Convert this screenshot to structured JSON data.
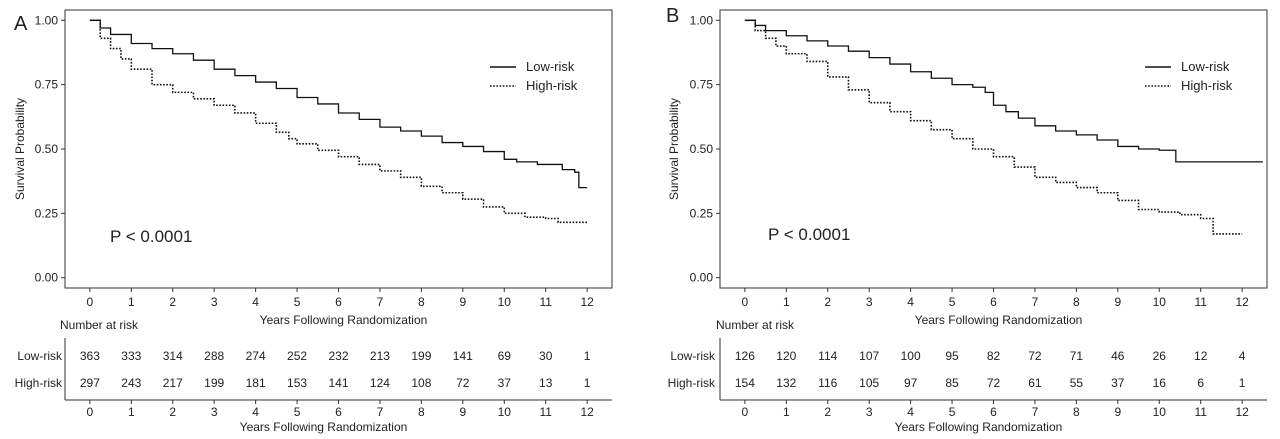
{
  "chart_data": [
    {
      "type": "line",
      "panel_label": "A",
      "ylabel": "Survival Probability",
      "xlabel": "Years Following Randomization",
      "xlim": [
        -0.6,
        12.6
      ],
      "ylim": [
        -0.04,
        1.04
      ],
      "xticks": [
        "0",
        "1",
        "2",
        "3",
        "4",
        "5",
        "6",
        "7",
        "8",
        "9",
        "10",
        "11",
        "12"
      ],
      "yticks": [
        "0.00",
        "0.25",
        "0.50",
        "0.75",
        "1.00"
      ],
      "legend_position": "top-right",
      "annotation": "P < 0.0001",
      "series": [
        {
          "name": "Low-risk",
          "style": "solid",
          "x": [
            0,
            0.25,
            0.5,
            1,
            1.5,
            2,
            2.5,
            3,
            3.5,
            4,
            4.5,
            5,
            5.5,
            6,
            6.5,
            7,
            7.5,
            8,
            8.5,
            9,
            9.5,
            10,
            10.3,
            10.8,
            11.4,
            11.7,
            11.8,
            12
          ],
          "y": [
            1.0,
            0.97,
            0.945,
            0.91,
            0.89,
            0.87,
            0.845,
            0.81,
            0.785,
            0.76,
            0.735,
            0.7,
            0.675,
            0.64,
            0.615,
            0.585,
            0.57,
            0.55,
            0.525,
            0.51,
            0.49,
            0.46,
            0.45,
            0.44,
            0.42,
            0.41,
            0.35,
            0.35
          ]
        },
        {
          "name": "High-risk",
          "style": "dotted",
          "x": [
            0,
            0.25,
            0.5,
            0.75,
            1,
            1.5,
            2,
            2.5,
            3,
            3.5,
            4,
            4.5,
            4.8,
            5,
            5.5,
            6,
            6.5,
            7,
            7.5,
            8,
            8.5,
            9,
            9.5,
            10,
            10.5,
            11,
            11.3,
            12
          ],
          "y": [
            1.0,
            0.93,
            0.89,
            0.85,
            0.81,
            0.75,
            0.72,
            0.695,
            0.67,
            0.64,
            0.6,
            0.565,
            0.54,
            0.52,
            0.495,
            0.47,
            0.44,
            0.415,
            0.39,
            0.355,
            0.33,
            0.305,
            0.275,
            0.25,
            0.235,
            0.23,
            0.215,
            0.215
          ]
        }
      ],
      "risk_table": {
        "title": "Number at risk",
        "xlabel": "Years Following Randomization",
        "rows": [
          {
            "label": "Low-risk",
            "values": [
              363,
              333,
              314,
              288,
              274,
              252,
              232,
              213,
              199,
              141,
              69,
              30,
              1
            ]
          },
          {
            "label": "High-risk",
            "values": [
              297,
              243,
              217,
              199,
              181,
              153,
              141,
              124,
              108,
              72,
              37,
              13,
              1
            ]
          }
        ]
      }
    },
    {
      "type": "line",
      "panel_label": "B",
      "ylabel": "Survival Probability",
      "xlabel": "Years Following Randomization",
      "xlim": [
        -0.6,
        12.6
      ],
      "ylim": [
        -0.04,
        1.04
      ],
      "xticks": [
        "0",
        "1",
        "2",
        "3",
        "4",
        "5",
        "6",
        "7",
        "8",
        "9",
        "10",
        "11",
        "12"
      ],
      "yticks": [
        "0.00",
        "0.25",
        "0.50",
        "0.75",
        "1.00"
      ],
      "legend_position": "top-right",
      "annotation": "P < 0.0001",
      "series": [
        {
          "name": "Low-risk",
          "style": "solid",
          "x": [
            0,
            0.25,
            0.5,
            1,
            1.5,
            2,
            2.5,
            3,
            3.5,
            4,
            4.5,
            5,
            5.5,
            5.8,
            6,
            6.3,
            6.6,
            7,
            7.5,
            8,
            8.5,
            9,
            9.5,
            10,
            10.4,
            11,
            12.5
          ],
          "y": [
            1.0,
            0.98,
            0.96,
            0.94,
            0.92,
            0.9,
            0.88,
            0.855,
            0.83,
            0.8,
            0.775,
            0.75,
            0.74,
            0.72,
            0.67,
            0.645,
            0.62,
            0.59,
            0.57,
            0.555,
            0.535,
            0.51,
            0.5,
            0.495,
            0.45,
            0.45,
            0.45
          ]
        },
        {
          "name": "High-risk",
          "style": "dotted",
          "x": [
            0,
            0.25,
            0.5,
            0.75,
            1,
            1.5,
            2,
            2.5,
            3,
            3.5,
            4,
            4.5,
            5,
            5.5,
            6,
            6.5,
            7,
            7.5,
            8,
            8.5,
            9,
            9.5,
            10,
            10.5,
            11,
            11.3,
            12
          ],
          "y": [
            1.0,
            0.96,
            0.93,
            0.9,
            0.87,
            0.84,
            0.78,
            0.73,
            0.68,
            0.645,
            0.61,
            0.575,
            0.54,
            0.5,
            0.47,
            0.43,
            0.39,
            0.37,
            0.35,
            0.33,
            0.3,
            0.265,
            0.255,
            0.245,
            0.23,
            0.17,
            0.17
          ]
        }
      ],
      "risk_table": {
        "title": "Number at risk",
        "xlabel": "Years Following Randomization",
        "rows": [
          {
            "label": "Low-risk",
            "values": [
              126,
              120,
              114,
              107,
              100,
              95,
              82,
              72,
              71,
              46,
              26,
              12,
              4
            ]
          },
          {
            "label": "High-risk",
            "values": [
              154,
              132,
              116,
              105,
              97,
              85,
              72,
              61,
              55,
              37,
              16,
              6,
              1
            ]
          }
        ]
      }
    }
  ]
}
